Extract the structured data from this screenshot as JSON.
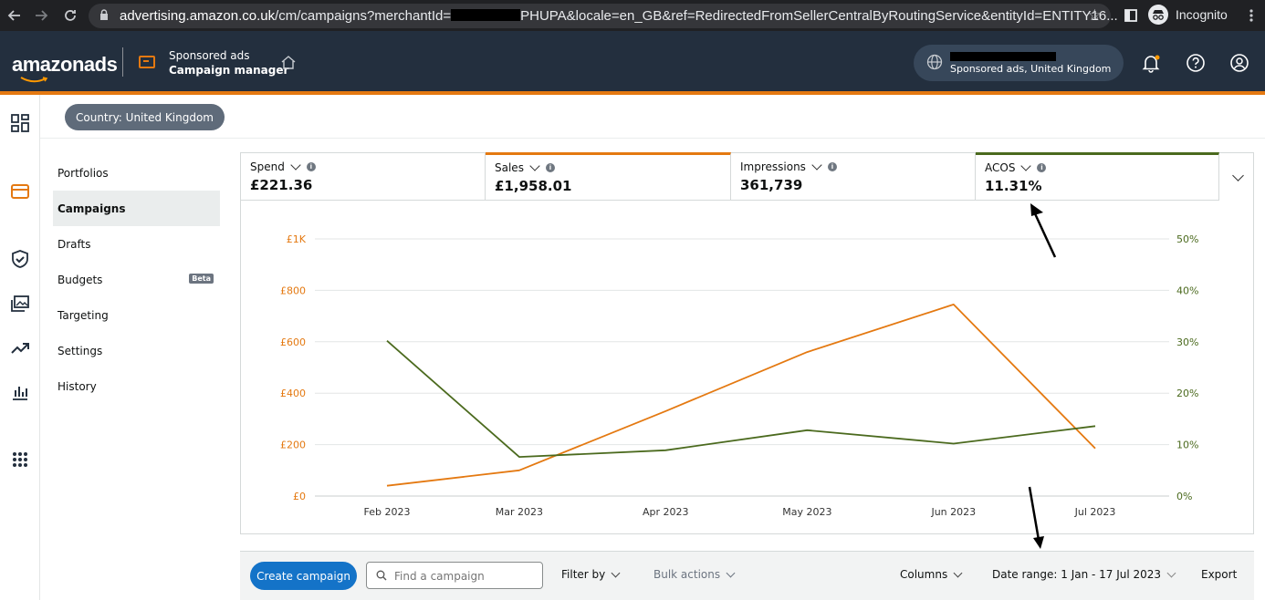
{
  "browser": {
    "url_host": "advertising.amazon.co.uk",
    "url_path_start": "/cm/campaigns?merchantId=",
    "url_path_end": "PHUPA&locale=en_GB&ref=RedirectedFromSellerCentralByRoutingService&entityId=ENTITY16...",
    "incognito_label": "Incognito",
    "icons": [
      "back-icon",
      "forward-icon",
      "reload-icon",
      "lock-icon",
      "star-icon",
      "sidebar-icon",
      "incognito-icon",
      "menu-dots-icon"
    ]
  },
  "header": {
    "logo_text": "amazonads",
    "product_line1": "Sponsored ads",
    "product_line2": "Campaign manager",
    "account_label": "Sponsored ads, United Kingdom",
    "accent": "#e47911",
    "bg": "#232f3e"
  },
  "country_pill": "Country: United Kingdom",
  "subnav": {
    "items": [
      {
        "label": "Portfolios",
        "active": false
      },
      {
        "label": "Campaigns",
        "active": true
      },
      {
        "label": "Drafts",
        "active": false
      },
      {
        "label": "Budgets",
        "active": false,
        "badge": "Beta"
      },
      {
        "label": "Targeting",
        "active": false
      },
      {
        "label": "Settings",
        "active": false
      },
      {
        "label": "History",
        "active": false
      }
    ]
  },
  "metrics": [
    {
      "label": "Spend",
      "value": "£221.36",
      "color": ""
    },
    {
      "label": "Sales",
      "value": "£1,958.01",
      "color": "#e47911"
    },
    {
      "label": "Impressions",
      "value": "361,739",
      "color": ""
    },
    {
      "label": "ACOS",
      "value": "11.31%",
      "color": "#4b6a1e"
    }
  ],
  "chart_data": {
    "type": "line",
    "categories": [
      "Feb 2023",
      "Mar 2023",
      "Apr 2023",
      "May 2023",
      "Jun 2023",
      "Jul 2023"
    ],
    "x_days": [
      0,
      28,
      59,
      89,
      120,
      150
    ],
    "left_axis": {
      "ticks": [
        "£0",
        "£200",
        "£400",
        "£600",
        "£800",
        "£1K"
      ],
      "ylim": [
        0,
        1000
      ],
      "color": "#e47911"
    },
    "right_axis": {
      "ticks": [
        "0%",
        "10%",
        "20%",
        "30%",
        "40%",
        "50%"
      ],
      "ylim": [
        0,
        50
      ],
      "color": "#4b6a1e"
    },
    "series": [
      {
        "name": "Sales",
        "axis": "left",
        "color": "#e47911",
        "values": [
          40,
          100,
          330,
          560,
          745,
          185
        ]
      },
      {
        "name": "ACOS",
        "axis": "right",
        "color": "#4b6a1e",
        "values": [
          30.2,
          7.6,
          8.9,
          12.8,
          10.2,
          13.6
        ]
      }
    ],
    "grid": true
  },
  "toolbar": {
    "create_label": "Create campaign",
    "search_placeholder": "Find a campaign",
    "filter_label": "Filter by",
    "bulk_label": "Bulk actions",
    "columns_label": "Columns",
    "date_range_label": "Date range: 1 Jan - 17 Jul 2023",
    "export_label": "Export"
  }
}
